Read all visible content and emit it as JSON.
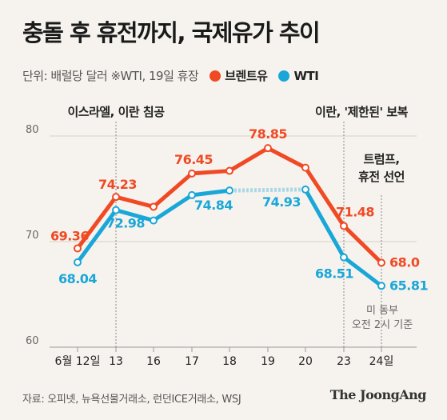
{
  "header": {
    "title": "충돌 후 휴전까지, 국제유가 추이",
    "unit_note": "단위: 배럴당 달러 ※WTI, 19일 휴장"
  },
  "colors": {
    "brent": "#f04a25",
    "wti": "#1aa7d8"
  },
  "footer": {
    "source": "자료: 오피넷, 뉴욕선물거래소, 런던ICE거래소, WSJ",
    "brand": "The JoongAng"
  },
  "chart_data": {
    "type": "line",
    "categories": [
      "6월 12일",
      "13",
      "16",
      "17",
      "18",
      "19",
      "20",
      "23",
      "24일"
    ],
    "series": [
      {
        "name": "브렌트유",
        "values": [
          69.36,
          74.23,
          73.3,
          76.45,
          76.7,
          78.85,
          77.0,
          71.48,
          68.0
        ]
      },
      {
        "name": "WTI",
        "values": [
          68.04,
          72.98,
          72.0,
          74.4,
          74.84,
          null,
          74.93,
          68.51,
          65.81
        ]
      }
    ],
    "ylim": [
      60,
      80
    ],
    "yticks": [
      60,
      70,
      80
    ],
    "grid": true,
    "legend": "top",
    "data_labels": [
      {
        "series": 0,
        "index": 0,
        "text": "69.36"
      },
      {
        "series": 0,
        "index": 1,
        "text": "74.23"
      },
      {
        "series": 0,
        "index": 3,
        "text": "76.45"
      },
      {
        "series": 0,
        "index": 5,
        "text": "78.85"
      },
      {
        "series": 0,
        "index": 7,
        "text": "71.48"
      },
      {
        "series": 0,
        "index": 8,
        "text": "68.0"
      },
      {
        "series": 1,
        "index": 0,
        "text": "68.04"
      },
      {
        "series": 1,
        "index": 1,
        "text": "72.98"
      },
      {
        "series": 1,
        "index": 4,
        "text": "74.84"
      },
      {
        "series": 1,
        "index": 6,
        "text": "74.93"
      },
      {
        "series": 1,
        "index": 7,
        "text": "68.51"
      },
      {
        "series": 1,
        "index": 8,
        "text": "65.81"
      }
    ],
    "annotations": [
      {
        "index": 1,
        "lines": [
          "이스라엘, 이란 침공"
        ]
      },
      {
        "index": 7,
        "lines": [
          "이란, '제한된' 보복"
        ]
      },
      {
        "index": 8,
        "lines": [
          "트럼프,",
          "휴전 선언"
        ]
      }
    ],
    "note_lines": [
      "미 동부",
      "오전 2시 기준"
    ]
  }
}
